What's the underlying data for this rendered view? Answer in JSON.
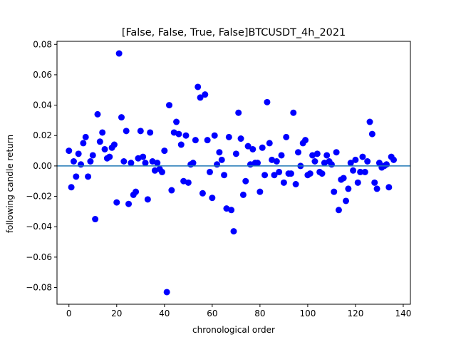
{
  "chart_data": {
    "type": "scatter",
    "title": "[False, False, True, False]BTCUSDT_4h_2021",
    "xlabel": "chronological order",
    "ylabel": "following candle return",
    "xlim": [
      -5,
      143
    ],
    "ylim": [
      -0.091,
      0.082
    ],
    "xticks": [
      0,
      20,
      40,
      60,
      80,
      100,
      120,
      140
    ],
    "yticks": [
      -0.08,
      -0.06,
      -0.04,
      -0.02,
      0.0,
      0.02,
      0.04,
      0.06,
      0.08
    ],
    "xtick_labels": [
      "0",
      "20",
      "40",
      "60",
      "80",
      "100",
      "120",
      "140"
    ],
    "ytick_labels": [
      "−0.08",
      "−0.06",
      "−0.04",
      "−0.02",
      "0.00",
      "0.02",
      "0.04",
      "0.06",
      "0.08"
    ],
    "hline": 0,
    "grid": false,
    "legend": "none",
    "colors": {
      "points": "#0000ff",
      "hline": "#1f77b4"
    },
    "series": [
      {
        "x": [
          0,
          1,
          2,
          3,
          4,
          5,
          6,
          7,
          8,
          9,
          10,
          11,
          12,
          13,
          14,
          15,
          16,
          17,
          18,
          19,
          20,
          21,
          22,
          23,
          24,
          25,
          26,
          27,
          28,
          29,
          30,
          31,
          32,
          33,
          34,
          35,
          36,
          37,
          38,
          39,
          40,
          41,
          42,
          43,
          44,
          45,
          46,
          47,
          48,
          49,
          50,
          51,
          52,
          53,
          54,
          55,
          56,
          57,
          58,
          59,
          60,
          61,
          62,
          63,
          64,
          65,
          66,
          67,
          68,
          69,
          70,
          71,
          72,
          73,
          74,
          75,
          76,
          77,
          78,
          79,
          80,
          81,
          82,
          83,
          84,
          85,
          86,
          87,
          88,
          89,
          90,
          91,
          92,
          93,
          94,
          95,
          96,
          97,
          98,
          99,
          100,
          101,
          102,
          103,
          104,
          105,
          106,
          107,
          108,
          109,
          110,
          111,
          112,
          113,
          114,
          115,
          116,
          117,
          118,
          119,
          120,
          121,
          122,
          123,
          124,
          125,
          126,
          127,
          128,
          129,
          130,
          131,
          132,
          133,
          134,
          135,
          136
        ],
        "y": [
          0.01,
          -0.014,
          0.003,
          -0.007,
          0.008,
          0.001,
          0.015,
          0.019,
          -0.007,
          0.003,
          0.007,
          -0.035,
          0.034,
          0.016,
          0.022,
          0.011,
          0.005,
          0.006,
          0.012,
          0.014,
          -0.024,
          0.074,
          0.032,
          0.003,
          0.023,
          -0.025,
          0.002,
          -0.019,
          -0.017,
          0.005,
          0.023,
          0.006,
          0.002,
          -0.022,
          0.022,
          0.003,
          -0.003,
          0.002,
          -0.002,
          -0.004,
          0.01,
          -0.083,
          0.04,
          -0.016,
          0.022,
          0.029,
          0.021,
          0.014,
          -0.01,
          0.02,
          -0.011,
          0.001,
          0.002,
          0.017,
          0.052,
          0.045,
          -0.018,
          0.047,
          0.017,
          -0.004,
          -0.021,
          0.02,
          0.001,
          0.009,
          0.004,
          -0.006,
          -0.028,
          0.019,
          -0.029,
          -0.043,
          0.008,
          0.035,
          0.018,
          -0.019,
          -0.01,
          0.013,
          0.001,
          0.011,
          0.002,
          0.002,
          -0.017,
          0.012,
          -0.006,
          0.042,
          0.015,
          0.004,
          -0.006,
          0.003,
          -0.004,
          0.007,
          -0.011,
          0.019,
          -0.005,
          -0.005,
          0.035,
          -0.012,
          0.009,
          0.0,
          0.015,
          0.017,
          -0.006,
          -0.005,
          0.007,
          0.003,
          0.008,
          -0.004,
          -0.005,
          0.002,
          0.007,
          0.003,
          0.001,
          -0.017,
          0.009,
          -0.029,
          -0.009,
          -0.008,
          -0.023,
          -0.015,
          0.002,
          -0.003,
          0.004,
          -0.011,
          -0.004,
          0.006,
          -0.004,
          0.003,
          0.029,
          0.021,
          -0.011,
          -0.015,
          0.002,
          -0.001,
          0.0,
          0.001,
          -0.014,
          0.006,
          0.004
        ]
      }
    ]
  }
}
